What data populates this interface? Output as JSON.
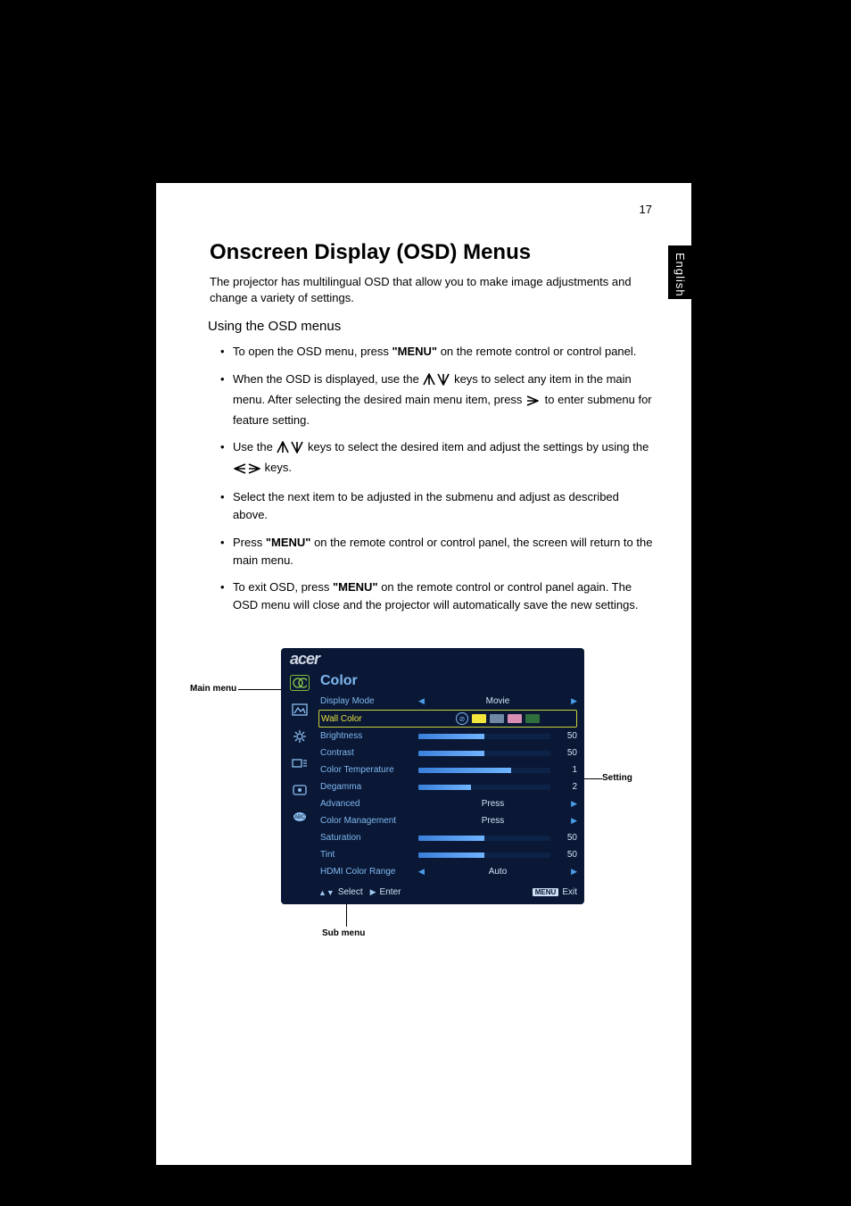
{
  "page_number": "17",
  "language_tab": "English",
  "heading": "Onscreen Display (OSD) Menus",
  "intro": "The projector has multilingual OSD that allow you to make image adjustments and change a variety of settings.",
  "subheading": "Using the OSD menus",
  "bullets": {
    "b0a": "To open the OSD menu, press ",
    "b0b": "\"MENU\"",
    "b0c": " on the remote control or control panel.",
    "b1a": "When the OSD is displayed, use the ",
    "b1b": " keys to select any item in the main menu. After selecting the desired main menu item, press ",
    "b1c": " to enter submenu for feature setting.",
    "b2a": "Use the ",
    "b2b": " keys to select the desired item and adjust the settings by using the ",
    "b2c": " keys.",
    "b3": "Select the next item to be adjusted in the submenu and adjust as described above.",
    "b4a": "Press ",
    "b4b": "\"MENU\"",
    "b4c": " on the remote control or control panel, the screen will return to the main menu.",
    "b5a": "To exit OSD, press ",
    "b5b": "\"MENU\"",
    "b5c": " on the remote control or control panel again. The OSD menu will close and the projector will automatically save the new settings."
  },
  "labels": {
    "main_menu": "Main menu",
    "sub_menu": "Sub menu",
    "setting": "Setting"
  },
  "osd": {
    "logo": "acer",
    "title": "Color",
    "background_color": "#0a1836",
    "accent_color": "#7fb8ef",
    "highlight_color": "#7dbb3a",
    "rows": [
      {
        "label": "Display Mode",
        "type": "select",
        "value": "Movie"
      },
      {
        "label": "Wall Color",
        "type": "swatch",
        "colors": [
          "none",
          "#f2e63a",
          "#6f89a4",
          "#d98fb3",
          "#2f6f3d"
        ],
        "highlight": true
      },
      {
        "label": "Brightness",
        "type": "slider",
        "value": 50,
        "fill": 50
      },
      {
        "label": "Contrast",
        "type": "slider",
        "value": 50,
        "fill": 50
      },
      {
        "label": "Color Temperature",
        "type": "slider",
        "value": 1,
        "fill": 70
      },
      {
        "label": "Degamma",
        "type": "slider",
        "value": 2,
        "fill": 40
      },
      {
        "label": "Advanced",
        "type": "press",
        "value": "Press"
      },
      {
        "label": "Color Management",
        "type": "press",
        "value": "Press"
      },
      {
        "label": "Saturation",
        "type": "slider",
        "value": 50,
        "fill": 50
      },
      {
        "label": "Tint",
        "type": "slider",
        "value": 50,
        "fill": 50
      },
      {
        "label": "HDMI Color Range",
        "type": "select",
        "value": "Auto"
      }
    ],
    "footer": {
      "select": "Select",
      "enter": "Enter",
      "menu": "MENU",
      "exit": "Exit"
    }
  }
}
